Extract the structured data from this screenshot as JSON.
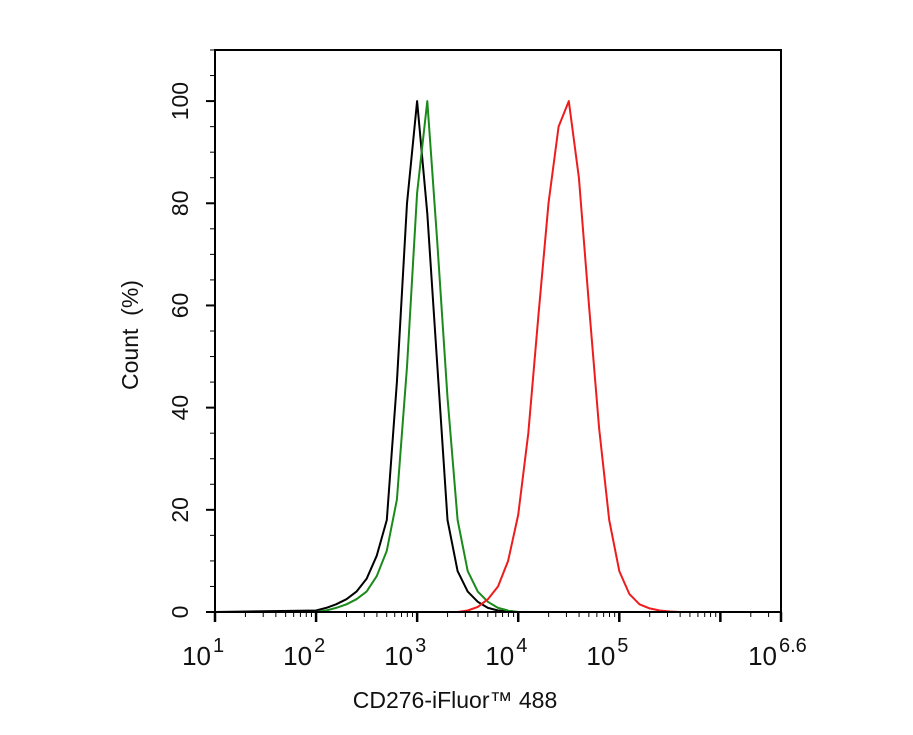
{
  "chart_data": {
    "type": "line",
    "xlabel": "CD276-iFluor™ 488",
    "ylabel": "Count  (%)",
    "xscale": "log",
    "xlim": [
      10,
      3981072
    ],
    "ylim": [
      0,
      110
    ],
    "grid": false,
    "x_ticks": [
      {
        "base": "10",
        "exp": "1",
        "value": 10
      },
      {
        "base": "10",
        "exp": "2",
        "value": 100
      },
      {
        "base": "10",
        "exp": "3",
        "value": 1000
      },
      {
        "base": "10",
        "exp": "4",
        "value": 10000
      },
      {
        "base": "10",
        "exp": "5",
        "value": 100000
      },
      {
        "base": "10",
        "exp": "6.6",
        "value": 3981072
      }
    ],
    "y_ticks": [
      "0",
      "20",
      "40",
      "60",
      "80",
      "100"
    ],
    "x": [
      100,
      126,
      158,
      200,
      251,
      316,
      398,
      501,
      631,
      794,
      1000,
      1259,
      1585,
      1995,
      2512,
      3162,
      3981,
      5012,
      6310,
      7943,
      10000,
      12589,
      15849,
      19953,
      25119,
      31623,
      39811,
      50119,
      63096,
      79433,
      100000,
      125893,
      158489,
      199526,
      251189,
      316228,
      398107
    ],
    "series": [
      {
        "color": "#000000",
        "values": [
          0.3,
          0.8,
          1.5,
          2.5,
          4,
          6.5,
          11,
          18,
          45,
          80,
          100,
          78,
          48,
          18,
          8,
          4,
          2,
          0.8,
          0.3,
          0.1,
          0,
          0,
          0,
          0,
          0,
          0,
          0,
          0,
          0,
          0,
          0,
          0,
          0,
          0,
          0,
          0,
          0
        ]
      },
      {
        "color": "#1a8a1a",
        "values": [
          0,
          0.3,
          0.8,
          1.5,
          2.5,
          4,
          7,
          12,
          22,
          48,
          82,
          100,
          72,
          42,
          18,
          8,
          4,
          2,
          0.8,
          0.3,
          0,
          0,
          0,
          0,
          0,
          0,
          0,
          0,
          0,
          0,
          0,
          0,
          0,
          0,
          0,
          0,
          0
        ]
      },
      {
        "color": "#ee1c1c",
        "values": [
          0,
          0,
          0,
          0,
          0,
          0,
          0,
          0,
          0,
          0,
          0,
          0,
          0,
          0,
          0,
          0.3,
          1,
          2.5,
          5,
          10,
          19,
          35,
          58,
          80,
          95,
          100,
          85,
          60,
          36,
          18,
          8,
          3.5,
          1.5,
          0.7,
          0.3,
          0.1,
          0
        ]
      }
    ]
  }
}
